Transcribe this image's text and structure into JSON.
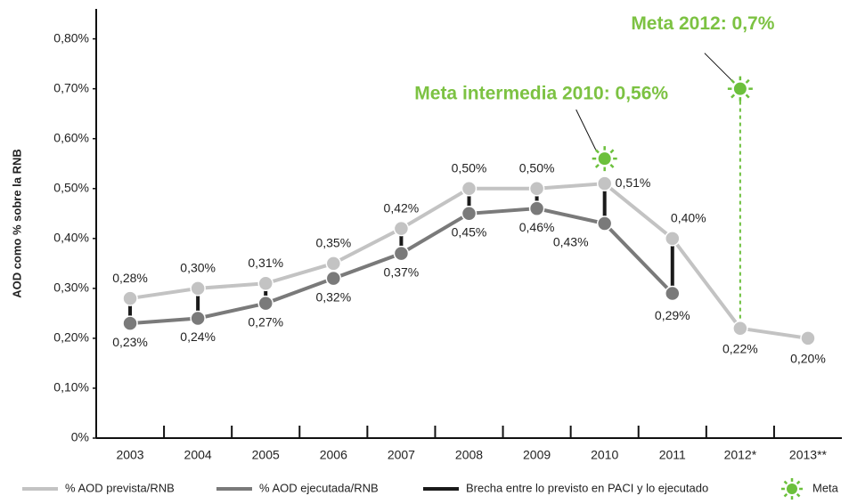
{
  "chart_data": {
    "type": "line",
    "y_label": "AOD como % sobre la RNB",
    "categories": [
      "2003",
      "2004",
      "2005",
      "2006",
      "2007",
      "2008",
      "2009",
      "2010",
      "2011",
      "2012*",
      "2013**"
    ],
    "series": [
      {
        "name": "% AOD prevista/RNB",
        "color": "#c3c3c3",
        "values": [
          0.28,
          0.3,
          0.31,
          0.35,
          0.42,
          0.5,
          0.5,
          0.51,
          0.4,
          0.22,
          0.2
        ],
        "value_labels": [
          "0,28%",
          "0,30%",
          "0,31%",
          "0,35%",
          "0,42%",
          "0,50%",
          "0,50%",
          "0,51%",
          "0,40%",
          "0,22%",
          "0,20%"
        ]
      },
      {
        "name": "% AOD ejecutada/RNB",
        "color": "#7a7a7a",
        "values": [
          0.23,
          0.24,
          0.27,
          0.32,
          0.37,
          0.45,
          0.46,
          0.43,
          0.29,
          null,
          null
        ],
        "value_labels": [
          "0,23%",
          "0,24%",
          "0,27%",
          "0,32%",
          "0,37%",
          "0,45%",
          "0,46%",
          "0,43%",
          "0,29%",
          null,
          null
        ]
      }
    ],
    "gap_name": "Brecha entre lo previsto en PACI y lo ejecutado",
    "gap_color": "#1a1a1a",
    "goal_name": "Meta",
    "goal_color": "#6cc03c",
    "goals": [
      {
        "text": "Meta intermedia 2010: 0,56%",
        "x": "2010",
        "value": 0.56
      },
      {
        "text": "Meta 2012: 0,7%",
        "x": "2012*",
        "value": 0.7
      }
    ],
    "ylim": [
      0,
      0.86
    ],
    "yticks": [
      {
        "value": 0,
        "label": "0%"
      },
      {
        "value": 0.1,
        "label": "0,10%"
      },
      {
        "value": 0.2,
        "label": "0,20%"
      },
      {
        "value": 0.3,
        "label": "0,30%"
      },
      {
        "value": 0.4,
        "label": "0,40%"
      },
      {
        "value": 0.5,
        "label": "0,50%"
      },
      {
        "value": 0.6,
        "label": "0,60%"
      },
      {
        "value": 0.7,
        "label": "0,70%"
      },
      {
        "value": 0.8,
        "label": "0,80%"
      }
    ]
  }
}
